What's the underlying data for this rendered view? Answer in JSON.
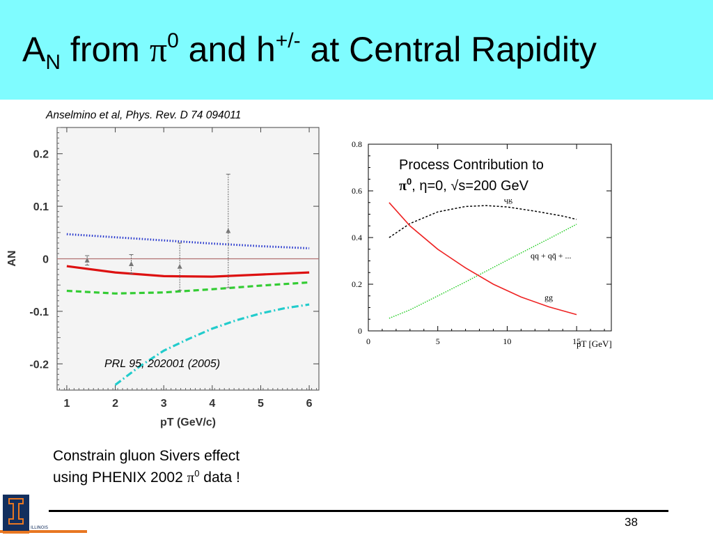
{
  "slide": {
    "title": {
      "a": "A",
      "sub": "N",
      "from": " from ",
      "pi": "π",
      "pi_sup": "0",
      "and": " and h",
      "h_sup": "+/-",
      "rest": " at Central Rapidity"
    },
    "citation": "Anselmino et al, Phys. Rev. D 74 094011",
    "caption": {
      "line1": "Constrain gluon Sivers effect",
      "line2_a": "using PHENIX 2002 ",
      "line2_pi": "π",
      "line2_sup": "0",
      "line2_b": " data !"
    },
    "page_number": "38",
    "logo_suffix": "ILLINOIS",
    "colors": {
      "title_band": "#7ffcff",
      "logo_blue": "#132f5e",
      "logo_orange": "#e87722"
    },
    "icons": [
      "university-logo-icon"
    ]
  },
  "chart_data": [
    {
      "type": "scatter",
      "xlabel": "pT (GeV/c)",
      "ylabel": "AN",
      "xlim": [
        0.8,
        6.2
      ],
      "ylim": [
        -0.25,
        0.25
      ],
      "xticks": [
        1,
        2,
        3,
        4,
        5,
        6
      ],
      "yticks": [
        -0.2,
        -0.1,
        0,
        0.1,
        0.2
      ],
      "xtick_labels": [
        "1",
        "2",
        "3",
        "4",
        "5",
        "6"
      ],
      "ytick_labels": [
        "-0.2",
        "-0.1",
        "0",
        "0.1",
        "0.2"
      ],
      "zero_line": 0,
      "annotation": "PRL 95, 202001 (2005)",
      "points": [
        {
          "x": 1.42,
          "y": -0.003,
          "err": 0.009
        },
        {
          "x": 2.33,
          "y": -0.01,
          "err": 0.018
        },
        {
          "x": 3.33,
          "y": -0.015,
          "err": 0.045
        },
        {
          "x": 4.33,
          "y": 0.053,
          "err": 0.108
        }
      ],
      "curves": [
        {
          "style": "dotted",
          "color": "#2233cc",
          "x": [
            1,
            2,
            3,
            4,
            5,
            6
          ],
          "y": [
            0.047,
            0.041,
            0.035,
            0.029,
            0.024,
            0.02
          ]
        },
        {
          "style": "solid",
          "color": "#dd1111",
          "x": [
            1,
            2,
            3,
            4,
            5,
            6
          ],
          "y": [
            -0.014,
            -0.026,
            -0.033,
            -0.034,
            -0.03,
            -0.026
          ]
        },
        {
          "style": "dashed",
          "color": "#33cc33",
          "x": [
            1,
            2,
            3,
            4,
            5,
            6
          ],
          "y": [
            -0.061,
            -0.066,
            -0.064,
            -0.058,
            -0.051,
            -0.045
          ]
        },
        {
          "style": "dashdot",
          "color": "#22cccc",
          "x": [
            2,
            2.5,
            3,
            3.5,
            4,
            4.5,
            5,
            5.5,
            6
          ],
          "y": [
            -0.24,
            -0.205,
            -0.175,
            -0.153,
            -0.133,
            -0.117,
            -0.104,
            -0.094,
            -0.087
          ]
        }
      ]
    },
    {
      "type": "line",
      "title_line1": "Process Contribution to",
      "title_pi": "π",
      "title_pi_sup": "0",
      "title_rest": ", η=0, √s=200 GeV",
      "xlabel": "pT [GeV]",
      "xlim": [
        0,
        17.5
      ],
      "ylim": [
        0,
        0.8
      ],
      "xticks": [
        0,
        5,
        10,
        15
      ],
      "yticks": [
        0,
        0.2,
        0.4,
        0.6,
        0.8
      ],
      "xtick_labels": [
        "0",
        "5",
        "10",
        "15"
      ],
      "ytick_labels": [
        "0",
        "0.2",
        "0.4",
        "0.6",
        "0.8"
      ],
      "series": [
        {
          "name": "qg",
          "style": "dashed",
          "color": "#000000",
          "x": [
            1.5,
            3,
            5,
            7,
            8.5,
            10,
            12,
            14,
            15
          ],
          "y": [
            0.4,
            0.46,
            0.51,
            0.533,
            0.537,
            0.531,
            0.513,
            0.492,
            0.478
          ]
        },
        {
          "name": "qq + qq̄ + ...",
          "style": "dotted",
          "color": "#22cc22",
          "x": [
            1.5,
            3,
            5,
            7,
            9,
            11,
            13,
            15
          ],
          "y": [
            0.054,
            0.09,
            0.15,
            0.21,
            0.272,
            0.334,
            0.395,
            0.457
          ]
        },
        {
          "name": "gg",
          "style": "solid",
          "color": "#ee2222",
          "x": [
            1.5,
            3,
            5,
            7,
            9,
            11,
            13,
            15
          ],
          "y": [
            0.55,
            0.45,
            0.35,
            0.27,
            0.2,
            0.145,
            0.103,
            0.07
          ]
        }
      ]
    }
  ]
}
